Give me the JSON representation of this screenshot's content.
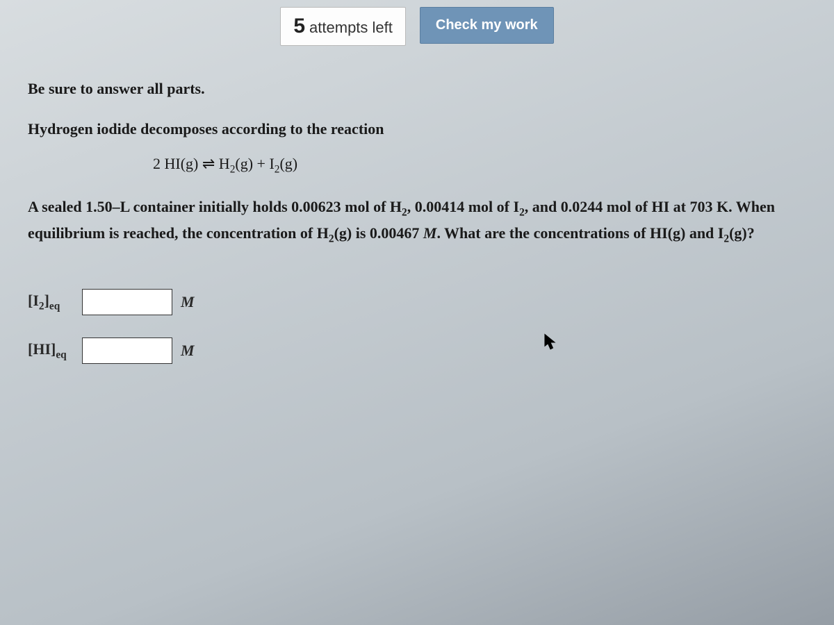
{
  "topbar": {
    "attempts_count": "5",
    "attempts_text": "attempts left",
    "check_label": "Check my work"
  },
  "question": {
    "instruction": "Be sure to answer all parts.",
    "line1_html": "Hydrogen iodide decomposes according to the reaction",
    "reaction_html": "2 HI(g) ⇌ H<sub>2</sub>(g) + I<sub>2</sub>(g)",
    "body_html": "A sealed 1.50–L container initially holds 0.00623 mol of H<sub>2</sub>, 0.00414 mol of I<sub>2</sub>, and 0.0244 mol of HI at 703 K. When equilibrium is reached, the concentration of H<sub>2</sub>(g) is 0.00467 <span class=\"italic\">M</span>. What are the concentrations of HI(g) and I<sub>2</sub>(g)?"
  },
  "answers": {
    "i2_label_html": "[I<sub>2</sub>]<sub>eq</sub>",
    "hi_label_html": "[HI]<sub>eq</sub>",
    "unit": "M",
    "i2_value": "",
    "hi_value": ""
  },
  "style": {
    "button_bg": "#6f94b7",
    "button_text": "#ffffff",
    "body_text": "#1a1a1a",
    "input_border": "#333333"
  }
}
